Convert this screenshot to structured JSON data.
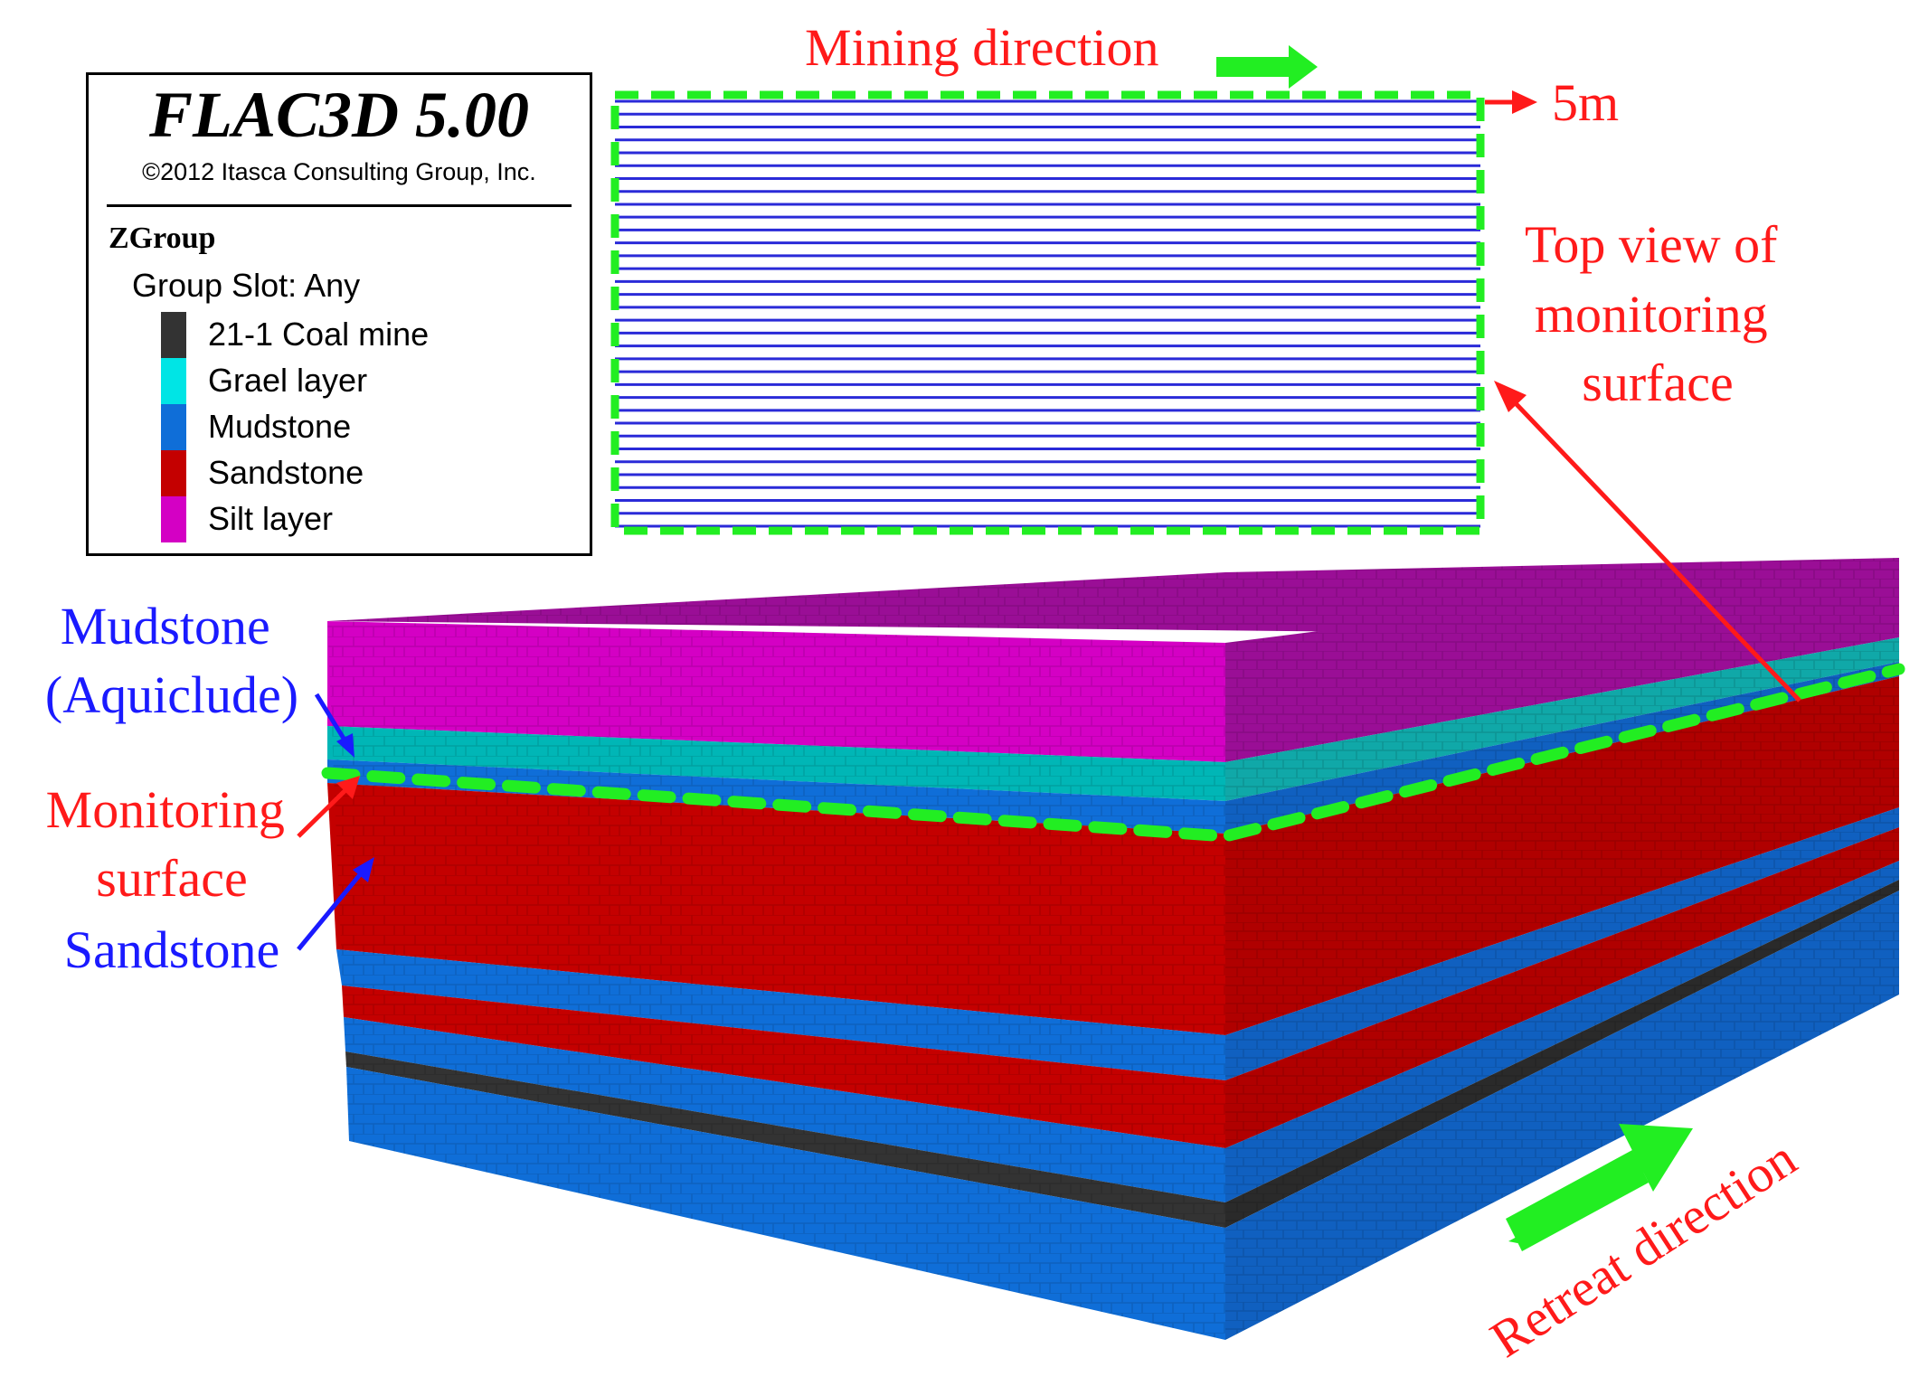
{
  "legend": {
    "title": "FLAC3D 5.00",
    "copyright": "©2012 Itasca Consulting Group, Inc.",
    "group_title": "ZGroup",
    "group_slot": "Group Slot: Any",
    "items": [
      {
        "label": "21-1 Coal mine",
        "color": "#333333"
      },
      {
        "label": "Grael layer",
        "color": "#00e5e5"
      },
      {
        "label": "Mudstone",
        "color": "#0f6ed8"
      },
      {
        "label": "Sandstone",
        "color": "#c40000"
      },
      {
        "label": "Silt layer",
        "color": "#d400c4"
      }
    ]
  },
  "annotations": {
    "mining_direction": "Mining direction",
    "spacing": "5m",
    "top_view_lines": [
      "Top view of",
      "monitoring",
      "surface"
    ],
    "mudstone_lines": [
      "Mudstone",
      "(Aquiclude)"
    ],
    "monitoring_lines": [
      "Monitoring",
      "surface"
    ],
    "sandstone": "Sandstone",
    "retreat_direction": "Retreat direction"
  },
  "colors": {
    "annotation_red": "#ff1a1a",
    "annotation_blue": "#1a1aff",
    "arrow_green": "#22ee22",
    "grid_line_blue": "#2a2ad8"
  }
}
